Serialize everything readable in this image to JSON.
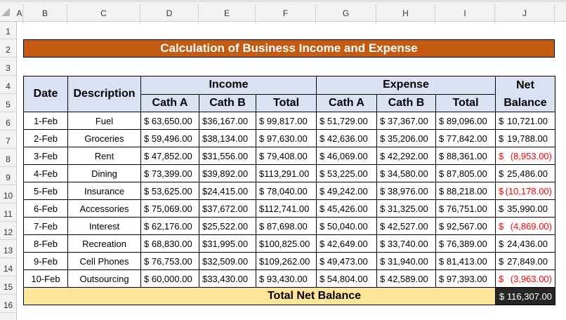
{
  "columns": [
    "A",
    "B",
    "C",
    "D",
    "E",
    "F",
    "G",
    "H",
    "I",
    "J"
  ],
  "rows": [
    "1",
    "2",
    "3",
    "4",
    "5",
    "6",
    "7",
    "8",
    "9",
    "10",
    "11",
    "12",
    "13",
    "14",
    "15",
    "16"
  ],
  "title": "Calculation of Business Income and Expense",
  "headers": {
    "date": "Date",
    "description": "Description",
    "income": "Income",
    "expense": "Expense",
    "net": "Net Balance",
    "cath_a": "Cath A",
    "cath_b": "Cath B",
    "total": "Total"
  },
  "data": [
    [
      "1-Feb",
      "Fuel",
      "$ 63,650.00",
      "$36,167.00",
      "$ 99,817.00",
      "$ 51,729.00",
      "$ 37,367.00",
      "$ 89,096.00",
      "10,721.00"
    ],
    [
      "2-Feb",
      "Groceries",
      "$ 59,496.00",
      "$38,134.00",
      "$ 97,630.00",
      "$ 42,636.00",
      "$ 35,206.00",
      "$ 77,842.00",
      "19,788.00"
    ],
    [
      "3-Feb",
      "Rent",
      "$ 47,852.00",
      "$31,556.00",
      "$ 79,408.00",
      "$ 46,069.00",
      "$ 42,292.00",
      "$ 88,361.00",
      "(8,953.00)"
    ],
    [
      "4-Feb",
      "Dining",
      "$ 73,399.00",
      "$39,892.00",
      "$113,291.00",
      "$ 53,225.00",
      "$ 34,580.00",
      "$ 87,805.00",
      "25,486.00"
    ],
    [
      "5-Feb",
      "Insurance",
      "$ 53,625.00",
      "$24,415.00",
      "$ 78,040.00",
      "$ 49,242.00",
      "$ 38,976.00",
      "$ 88,218.00",
      "(10,178.00)"
    ],
    [
      "6-Feb",
      "Accessories",
      "$ 75,069.00",
      "$37,672.00",
      "$112,741.00",
      "$ 45,426.00",
      "$ 31,325.00",
      "$ 76,751.00",
      "35,990.00"
    ],
    [
      "7-Feb",
      "Interest",
      "$ 62,176.00",
      "$25,522.00",
      "$ 87,698.00",
      "$ 50,040.00",
      "$ 42,527.00",
      "$ 92,567.00",
      "(4,869.00)"
    ],
    [
      "8-Feb",
      "Recreation",
      "$ 68,830.00",
      "$31,995.00",
      "$100,825.00",
      "$ 42,649.00",
      "$ 33,740.00",
      "$ 76,389.00",
      "24,436.00"
    ],
    [
      "9-Feb",
      "Cell Phones",
      "$ 76,753.00",
      "$32,509.00",
      "$109,262.00",
      "$ 49,473.00",
      "$ 31,940.00",
      "$ 81,413.00",
      "27,849.00"
    ],
    [
      "10-Feb",
      "Outsourcing",
      "$ 60,000.00",
      "$33,430.00",
      "$ 93,430.00",
      "$ 54,804.00",
      "$ 42,589.00",
      "$ 97,393.00",
      "(3,963.00)"
    ]
  ],
  "currency_symbol": "$",
  "total_label": "Total Net Balance",
  "total_value": "$ 116,307.00",
  "colors": {
    "title_bg": "#c55a11",
    "header_bg": "#d9e1f2",
    "total_bg": "#ffe699",
    "grand_bg": "#262626",
    "negative": "#ff0000"
  }
}
